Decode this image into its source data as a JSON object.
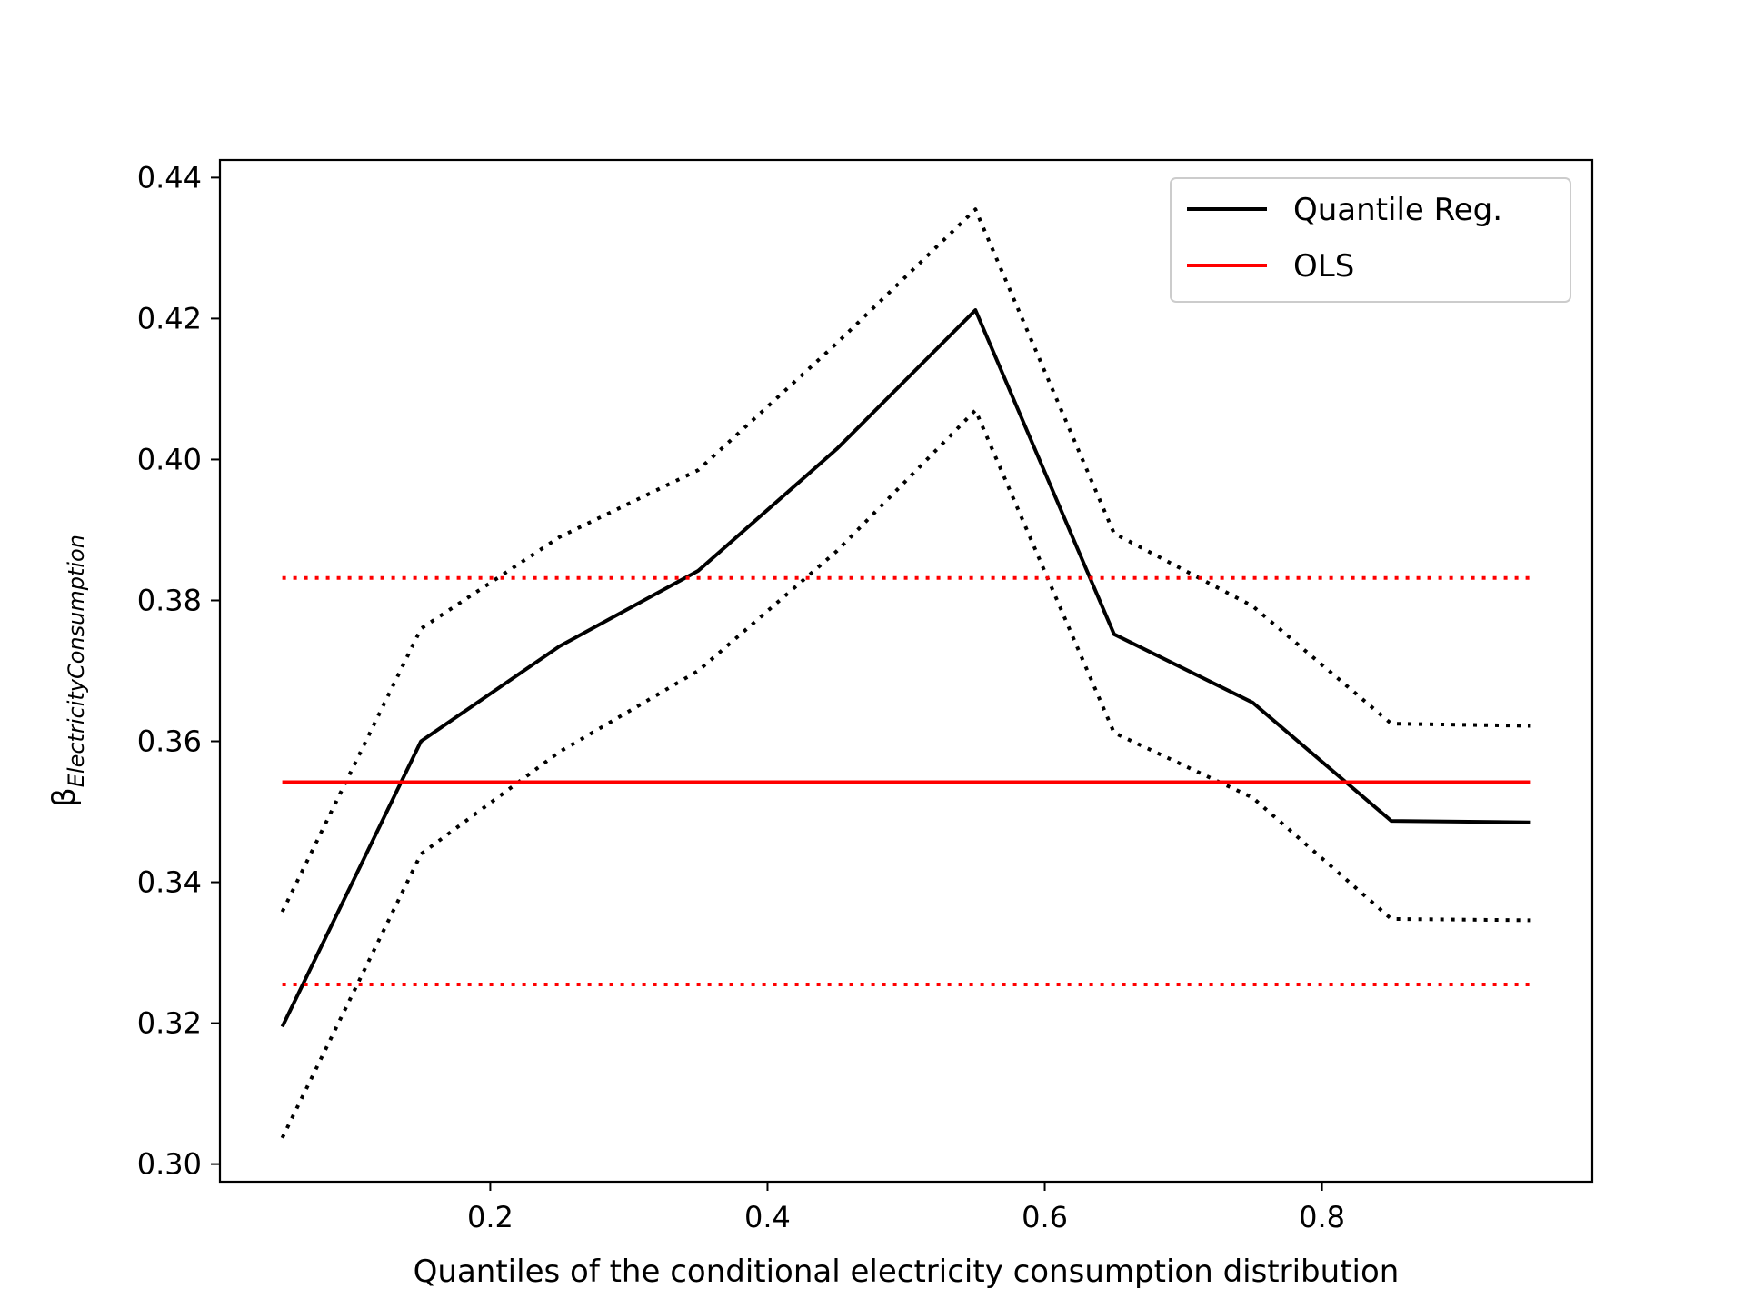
{
  "chart_data": {
    "type": "line",
    "xlabel": "Quantiles of the conditional electricity consumption distribution",
    "ylabel": {
      "symbol": "β",
      "subscript": "ElectricityConsumption"
    },
    "xlim": [
      0.005,
      0.995
    ],
    "ylim": [
      0.2975,
      0.4425
    ],
    "xticks": [
      0.2,
      0.4,
      0.6,
      0.8
    ],
    "yticks": [
      0.3,
      0.32,
      0.34,
      0.36,
      0.38,
      0.4,
      0.42,
      0.44
    ],
    "xtick_labels": [
      "0.2",
      "0.4",
      "0.6",
      "0.8"
    ],
    "ytick_labels": [
      "0.30",
      "0.32",
      "0.34",
      "0.36",
      "0.38",
      "0.40",
      "0.42",
      "0.44"
    ],
    "grid": false,
    "legend_position": "top-right",
    "x": [
      0.05,
      0.15,
      0.25,
      0.35,
      0.45,
      0.55,
      0.65,
      0.75,
      0.85,
      0.95
    ],
    "series": [
      {
        "name": "Quantile Reg.",
        "color": "#000000",
        "style": "solid",
        "in_legend": true,
        "values": [
          0.3195,
          0.36,
          0.3735,
          0.3842,
          0.4015,
          0.4212,
          0.3752,
          0.3655,
          0.3487,
          0.3485
        ]
      },
      {
        "name": "",
        "color": "#000000",
        "style": "dotted",
        "in_legend": false,
        "values": [
          0.3358,
          0.376,
          0.389,
          0.3985,
          0.4165,
          0.4355,
          0.3895,
          0.3792,
          0.3625,
          0.3622
        ]
      },
      {
        "name": "",
        "color": "#000000",
        "style": "dotted",
        "in_legend": false,
        "values": [
          0.3037,
          0.344,
          0.3585,
          0.37,
          0.387,
          0.407,
          0.3612,
          0.352,
          0.3348,
          0.3346
        ]
      },
      {
        "name": "OLS",
        "color": "#ff0000",
        "style": "solid",
        "in_legend": true,
        "values": [
          0.3542,
          0.3542,
          0.3542,
          0.3542,
          0.3542,
          0.3542,
          0.3542,
          0.3542,
          0.3542,
          0.3542
        ]
      },
      {
        "name": "",
        "color": "#ff0000",
        "style": "dotted",
        "in_legend": false,
        "values": [
          0.3832,
          0.3832,
          0.3832,
          0.3832,
          0.3832,
          0.3832,
          0.3832,
          0.3832,
          0.3832,
          0.3832
        ]
      },
      {
        "name": "",
        "color": "#ff0000",
        "style": "dotted",
        "in_legend": false,
        "values": [
          0.3255,
          0.3255,
          0.3255,
          0.3255,
          0.3255,
          0.3255,
          0.3255,
          0.3255,
          0.3255,
          0.3255
        ]
      }
    ]
  }
}
